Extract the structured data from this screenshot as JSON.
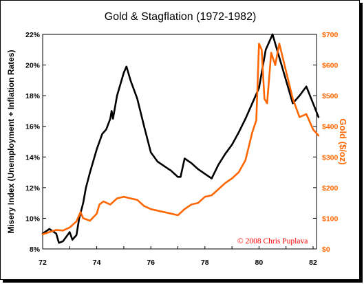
{
  "chart_data": {
    "type": "line",
    "title": "Gold & Stagflation (1972-1982)",
    "annotation": "© 2008  Chris Puplava",
    "x_ticks": [
      "72",
      "74",
      "76",
      "78",
      "80",
      "82"
    ],
    "left_axis": {
      "label": "Misery Index (Unemployment + Inflation Rates)",
      "ticks": [
        "8%",
        "10%",
        "12%",
        "14%",
        "16%",
        "18%",
        "20%",
        "22%"
      ],
      "ylim": [
        8,
        22
      ]
    },
    "right_axis": {
      "label": "Gold ($/oz)",
      "ticks": [
        "$0",
        "$100",
        "$200",
        "$300",
        "$400",
        "$500",
        "$600",
        "$700"
      ],
      "ylim": [
        0,
        700
      ],
      "color": "#ff6600"
    },
    "xlim": [
      1972,
      1982.2
    ],
    "grid": false,
    "series": [
      {
        "axis": "left",
        "color": "#000000",
        "x": [
          1972.0,
          1972.25,
          1972.5,
          1972.6,
          1972.75,
          1973.0,
          1973.1,
          1973.25,
          1973.35,
          1973.5,
          1973.6,
          1973.75,
          1974.0,
          1974.2,
          1974.35,
          1974.5,
          1974.55,
          1974.6,
          1974.75,
          1975.0,
          1975.1,
          1975.25,
          1975.5,
          1975.75,
          1976.0,
          1976.25,
          1976.5,
          1976.75,
          1977.0,
          1977.1,
          1977.25,
          1977.5,
          1977.75,
          1978.0,
          1978.25,
          1978.5,
          1978.75,
          1979.0,
          1979.25,
          1979.5,
          1979.75,
          1980.0,
          1980.25,
          1980.5,
          1980.75,
          1981.0,
          1981.25,
          1981.5,
          1981.75,
          1982.0,
          1982.2
        ],
        "values": [
          9.0,
          9.3,
          9.0,
          8.4,
          8.5,
          9.1,
          8.6,
          8.9,
          10.0,
          11.0,
          12.0,
          13.0,
          14.5,
          15.5,
          15.8,
          16.5,
          17.0,
          16.5,
          18.0,
          19.5,
          19.9,
          19.0,
          17.8,
          16.0,
          14.3,
          13.7,
          13.4,
          13.1,
          12.7,
          12.7,
          13.9,
          13.6,
          13.2,
          12.9,
          12.6,
          13.5,
          14.2,
          14.8,
          15.6,
          16.5,
          17.5,
          18.5,
          21.0,
          22.0,
          20.5,
          19.0,
          17.5,
          18.0,
          18.6,
          17.5,
          16.6
        ]
      },
      {
        "axis": "right",
        "color": "#ff6600",
        "x": [
          1972.0,
          1972.25,
          1972.5,
          1972.75,
          1973.0,
          1973.25,
          1973.4,
          1973.5,
          1973.75,
          1974.0,
          1974.1,
          1974.25,
          1974.5,
          1974.75,
          1975.0,
          1975.25,
          1975.5,
          1975.75,
          1976.0,
          1976.25,
          1976.5,
          1976.75,
          1977.0,
          1977.25,
          1977.5,
          1977.75,
          1978.0,
          1978.25,
          1978.5,
          1978.75,
          1979.0,
          1979.25,
          1979.5,
          1979.75,
          1979.9,
          1980.0,
          1980.1,
          1980.2,
          1980.3,
          1980.45,
          1980.6,
          1980.75,
          1981.0,
          1981.25,
          1981.5,
          1981.75,
          1982.0,
          1982.2
        ],
        "values": [
          48,
          55,
          62,
          60,
          70,
          90,
          120,
          100,
          92,
          115,
          145,
          155,
          145,
          165,
          170,
          165,
          160,
          140,
          130,
          125,
          120,
          115,
          110,
          130,
          145,
          150,
          170,
          175,
          195,
          215,
          230,
          250,
          290,
          380,
          420,
          670,
          650,
          490,
          475,
          640,
          600,
          670,
          580,
          490,
          430,
          440,
          390,
          370
        ]
      }
    ]
  }
}
